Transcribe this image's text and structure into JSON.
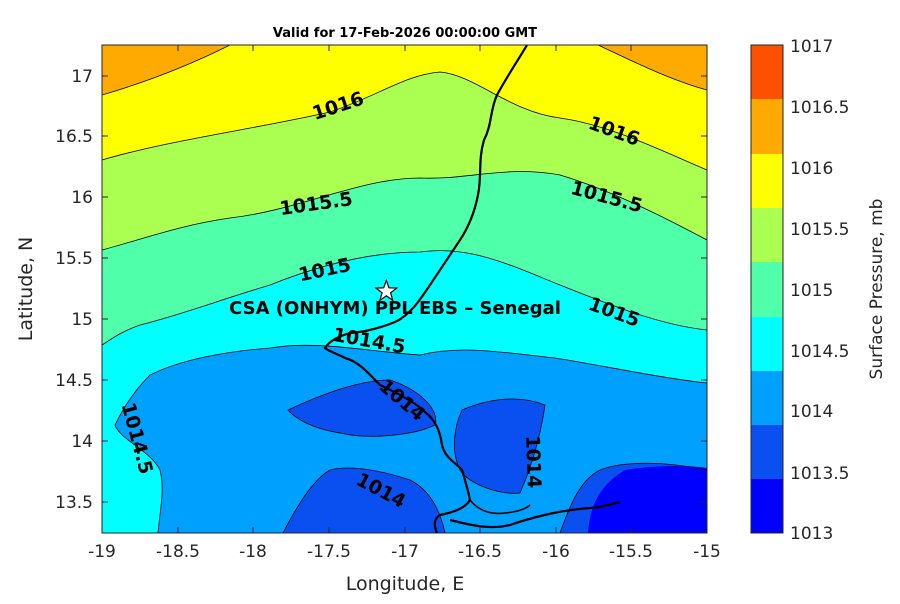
{
  "map": {
    "title": "Valid for 17-Feb-2026 00:00:00 GMT",
    "xlabel": "Longitude, E",
    "ylabel": "Latitude, N",
    "xlim": [
      -19,
      -15
    ],
    "ylim": [
      13.25,
      17.25
    ],
    "xticks": [
      "-19",
      "-18.5",
      "-18",
      "-17.5",
      "-17",
      "-16.5",
      "-16",
      "-15.5",
      "-15"
    ],
    "yticks": [
      "13.5",
      "14",
      "14.5",
      "15",
      "15.5",
      "16",
      "16.5",
      "17"
    ],
    "site": {
      "name": "CSA (ONHYM) PPL EBS  – Senegal",
      "lon": -17.12,
      "lat": 15.23
    },
    "contour_labels": [
      "1016",
      "1016",
      "1015.5",
      "1015.5",
      "1015",
      "1015",
      "1014.5",
      "1014",
      "1014.5",
      "1014",
      "1014"
    ]
  },
  "colorbar": {
    "label": "Surface Pressure, mb",
    "levels": [
      "1013",
      "1013.5",
      "1014",
      "1014.5",
      "1015",
      "1015.5",
      "1016",
      "1016.5",
      "1017"
    ],
    "colors": [
      "#0000ff",
      "#0a50f0",
      "#00a0ff",
      "#00ffff",
      "#50ffaa",
      "#aaff50",
      "#ffff00",
      "#ffaa00",
      "#ff5000"
    ]
  }
}
